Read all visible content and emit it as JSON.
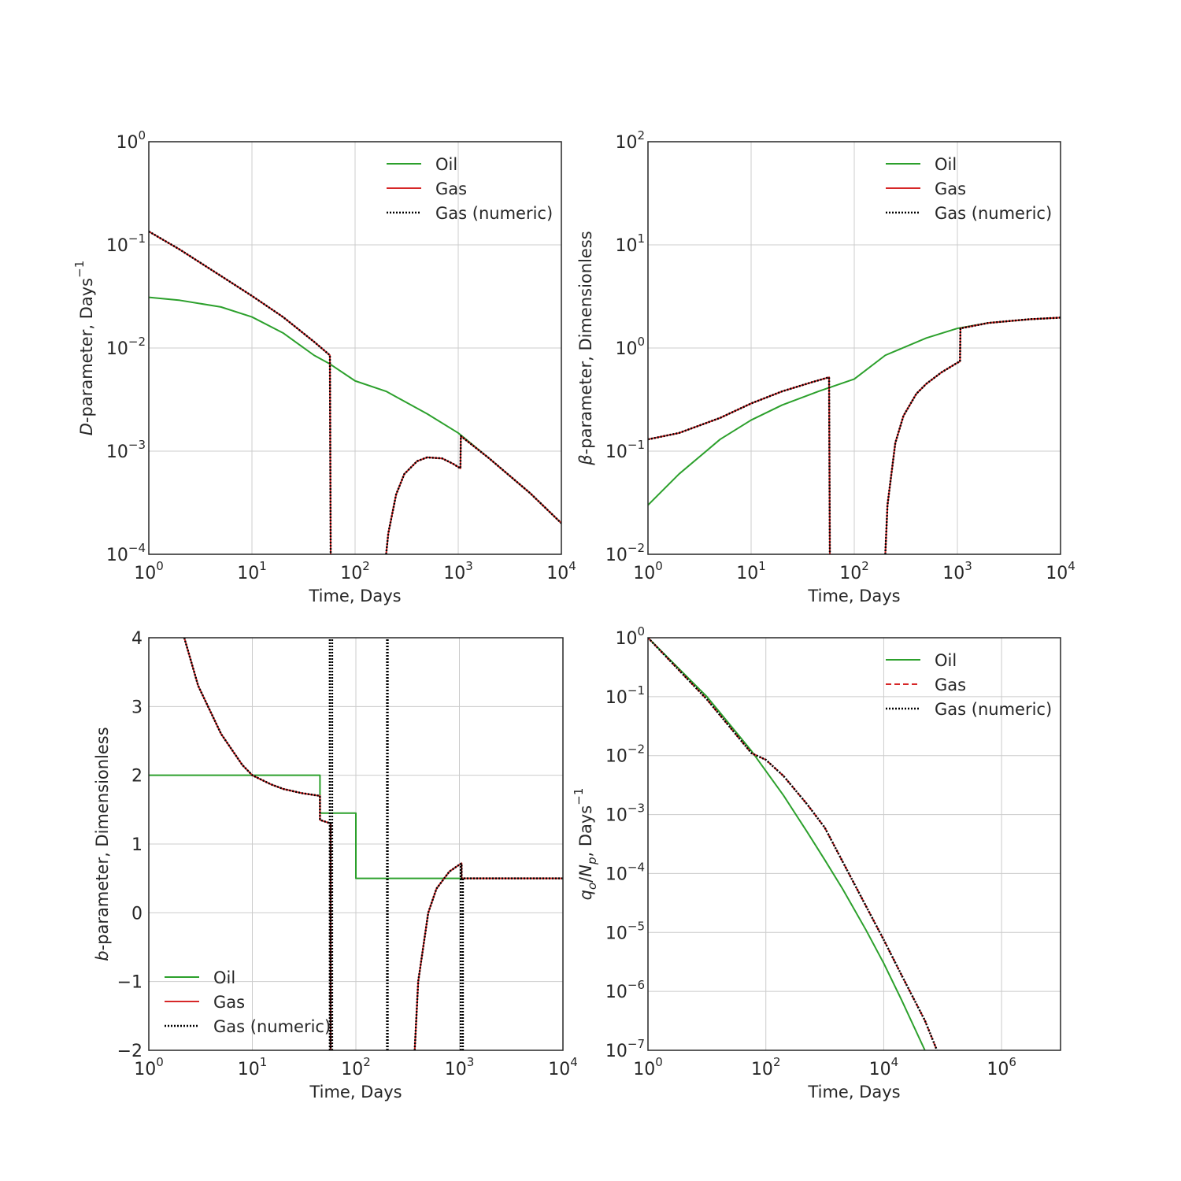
{
  "colors": {
    "oil": "#2ca02c",
    "gas": "#d62728",
    "numeric": "#000000",
    "grid": "#cccccc",
    "frame": "#262626"
  },
  "chart_data": [
    {
      "id": "d",
      "type": "line",
      "xlabel": "Time, Days",
      "ylabel_italic": "D",
      "ylabel_rest": "-parameter, Days",
      "ylabel_sup": "−1",
      "xscale": "log",
      "yscale": "log",
      "xlim": [
        1,
        10000
      ],
      "ylim": [
        0.0001,
        1
      ],
      "grid": true,
      "legend": "top-right",
      "xticks": [
        {
          "b": "10",
          "e": "0"
        },
        {
          "b": "10",
          "e": "1"
        },
        {
          "b": "10",
          "e": "2"
        },
        {
          "b": "10",
          "e": "3"
        },
        {
          "b": "10",
          "e": "4"
        }
      ],
      "yticks": [
        {
          "b": "10",
          "e": "−4"
        },
        {
          "b": "10",
          "e": "−3"
        },
        {
          "b": "10",
          "e": "−2"
        },
        {
          "b": "10",
          "e": "−1"
        },
        {
          "b": "10",
          "e": "0"
        }
      ],
      "series": [
        {
          "name": "Oil",
          "style": "solid",
          "color": "oil",
          "x": [
            1,
            2,
            5,
            10,
            20,
            40,
            57,
            100,
            200,
            500,
            1000,
            2000,
            5000,
            10000
          ],
          "y": [
            0.031,
            0.029,
            0.025,
            0.02,
            0.014,
            0.0085,
            0.007,
            0.0048,
            0.0038,
            0.0023,
            0.0015,
            0.00085,
            0.00039,
            0.0002
          ]
        },
        {
          "name": "Gas",
          "style": "solid",
          "color": "gas",
          "x": [
            1,
            2,
            5,
            10,
            20,
            40,
            57,
            58,
            null,
            200,
            210,
            250,
            300,
            400,
            500,
            700,
            900,
            1050,
            1060,
            2000,
            5000,
            10000
          ],
          "y": [
            0.135,
            0.09,
            0.05,
            0.032,
            0.02,
            0.0115,
            0.0085,
            0.0001,
            null,
            0.0001,
            0.00016,
            0.00038,
            0.0006,
            0.0008,
            0.00087,
            0.00085,
            0.00075,
            0.00068,
            0.0014,
            0.00085,
            0.00039,
            0.0002
          ]
        },
        {
          "name": "Gas (numeric)",
          "style": "dotted",
          "color": "numeric",
          "x": [
            1,
            2,
            5,
            10,
            20,
            40,
            57,
            58,
            null,
            200,
            210,
            250,
            300,
            400,
            500,
            700,
            900,
            1050,
            1060,
            2000,
            5000,
            10000
          ],
          "y": [
            0.135,
            0.09,
            0.05,
            0.032,
            0.02,
            0.0115,
            0.0085,
            0.0001,
            null,
            0.0001,
            0.00016,
            0.00038,
            0.0006,
            0.0008,
            0.00087,
            0.00085,
            0.00075,
            0.00068,
            0.0014,
            0.00085,
            0.00039,
            0.0002
          ]
        }
      ]
    },
    {
      "id": "beta",
      "type": "line",
      "xlabel": "Time, Days",
      "ylabel_italic": "β",
      "ylabel_rest": "-parameter, Dimensionless",
      "ylabel_sup": "",
      "xscale": "log",
      "yscale": "log",
      "xlim": [
        1,
        10000
      ],
      "ylim": [
        0.01,
        100
      ],
      "grid": true,
      "legend": "top-right",
      "xticks": [
        {
          "b": "10",
          "e": "0"
        },
        {
          "b": "10",
          "e": "1"
        },
        {
          "b": "10",
          "e": "2"
        },
        {
          "b": "10",
          "e": "3"
        },
        {
          "b": "10",
          "e": "4"
        }
      ],
      "yticks": [
        {
          "b": "10",
          "e": "−2"
        },
        {
          "b": "10",
          "e": "−1"
        },
        {
          "b": "10",
          "e": "0"
        },
        {
          "b": "10",
          "e": "1"
        },
        {
          "b": "10",
          "e": "2"
        }
      ],
      "series": [
        {
          "name": "Oil",
          "style": "solid",
          "color": "oil",
          "x": [
            1,
            2,
            5,
            10,
            20,
            45,
            100,
            200,
            500,
            1000,
            2000,
            5000,
            10000
          ],
          "y": [
            0.03,
            0.06,
            0.13,
            0.2,
            0.28,
            0.38,
            0.5,
            0.85,
            1.25,
            1.55,
            1.75,
            1.9,
            1.97
          ]
        },
        {
          "name": "Gas",
          "style": "solid",
          "color": "gas",
          "x": [
            1,
            2,
            5,
            10,
            20,
            40,
            57,
            58,
            null,
            200,
            210,
            250,
            300,
            400,
            500,
            700,
            1000,
            1060,
            1070,
            2000,
            5000,
            10000
          ],
          "y": [
            0.13,
            0.15,
            0.21,
            0.29,
            0.38,
            0.47,
            0.52,
            0.01,
            null,
            0.01,
            0.03,
            0.12,
            0.22,
            0.36,
            0.45,
            0.58,
            0.72,
            0.74,
            1.55,
            1.75,
            1.9,
            1.97
          ]
        },
        {
          "name": "Gas (numeric)",
          "style": "dotted",
          "color": "numeric",
          "x": [
            1,
            2,
            5,
            10,
            20,
            40,
            57,
            58,
            null,
            200,
            210,
            250,
            300,
            400,
            500,
            700,
            1000,
            1060,
            1070,
            2000,
            5000,
            10000
          ],
          "y": [
            0.13,
            0.15,
            0.21,
            0.29,
            0.38,
            0.47,
            0.52,
            0.01,
            null,
            0.01,
            0.03,
            0.12,
            0.22,
            0.36,
            0.45,
            0.58,
            0.72,
            0.74,
            1.55,
            1.75,
            1.9,
            1.97
          ]
        }
      ]
    },
    {
      "id": "b",
      "type": "line",
      "xlabel": "Time, Days",
      "ylabel_italic": "b",
      "ylabel_rest": "-parameter, Dimensionless",
      "ylabel_sup": "",
      "xscale": "log",
      "yscale": "linear",
      "xlim": [
        1,
        10000
      ],
      "ylim": [
        -2,
        4
      ],
      "grid": true,
      "legend": "bottom-left",
      "xticks": [
        {
          "b": "10",
          "e": "0"
        },
        {
          "b": "10",
          "e": "1"
        },
        {
          "b": "10",
          "e": "2"
        },
        {
          "b": "10",
          "e": "3"
        },
        {
          "b": "10",
          "e": "4"
        }
      ],
      "yticks": [
        {
          "b": "−2",
          "e": ""
        },
        {
          "b": "−1",
          "e": ""
        },
        {
          "b": "0",
          "e": ""
        },
        {
          "b": "1",
          "e": ""
        },
        {
          "b": "2",
          "e": ""
        },
        {
          "b": "3",
          "e": ""
        },
        {
          "b": "4",
          "e": ""
        }
      ],
      "series": [
        {
          "name": "Oil",
          "style": "solid",
          "color": "oil",
          "x": [
            1,
            45,
            45,
            100,
            100,
            10000
          ],
          "y": [
            2,
            2,
            1.45,
            1.45,
            0.5,
            0.5
          ]
        },
        {
          "name": "Gas",
          "style": "solid",
          "color": "gas",
          "x": [
            2.2,
            3,
            5,
            8,
            10,
            15,
            20,
            30,
            45,
            45,
            57,
            57,
            null,
            370,
            400,
            500,
            600,
            800,
            1000,
            1050,
            1050,
            10000
          ],
          "y": [
            4,
            3.3,
            2.6,
            2.15,
            2.0,
            1.87,
            1.8,
            1.74,
            1.7,
            1.35,
            1.3,
            -2,
            null,
            -2,
            -1.0,
            0.0,
            0.35,
            0.6,
            0.7,
            0.72,
            0.5,
            0.5
          ]
        },
        {
          "name": "Gas (numeric)",
          "style": "dotted",
          "color": "numeric",
          "x": [
            2.2,
            3,
            5,
            8,
            10,
            15,
            20,
            30,
            45,
            45,
            57,
            57,
            null,
            56,
            56,
            null,
            59,
            59,
            null,
            200,
            200,
            null,
            203,
            203,
            null,
            1030,
            1030,
            null,
            1080,
            1080,
            null,
            370,
            400,
            500,
            600,
            800,
            1000,
            1050,
            1050,
            10000
          ],
          "y": [
            4,
            3.3,
            2.6,
            2.15,
            2.0,
            1.87,
            1.8,
            1.74,
            1.7,
            1.35,
            1.3,
            -2,
            null,
            -2,
            4,
            null,
            -2,
            4,
            null,
            -2,
            4,
            null,
            -2,
            4,
            null,
            -2,
            0.72,
            null,
            -2,
            0.5,
            null,
            -2,
            -1.0,
            0.0,
            0.35,
            0.6,
            0.7,
            0.72,
            0.5,
            0.5
          ]
        }
      ]
    },
    {
      "id": "q",
      "type": "line",
      "xlabel": "Time, Days",
      "ylabel_italic": "q",
      "ylabel_rest": "",
      "ylabel_sup": "−1",
      "xscale": "log",
      "yscale": "log",
      "xlim": [
        1,
        10000000
      ],
      "ylim": [
        1e-07,
        1
      ],
      "grid": true,
      "legend": "top-right",
      "xticks": [
        {
          "b": "10",
          "e": "0"
        },
        {
          "b": "10",
          "e": "2"
        },
        {
          "b": "10",
          "e": "4"
        },
        {
          "b": "10",
          "e": "6"
        }
      ],
      "yticks": [
        {
          "b": "10",
          "e": "−7"
        },
        {
          "b": "10",
          "e": "−6"
        },
        {
          "b": "10",
          "e": "−5"
        },
        {
          "b": "10",
          "e": "−4"
        },
        {
          "b": "10",
          "e": "−3"
        },
        {
          "b": "10",
          "e": "−2"
        },
        {
          "b": "10",
          "e": "−1"
        },
        {
          "b": "10",
          "e": "0"
        }
      ],
      "series": [
        {
          "name": "Oil",
          "style": "solid",
          "color": "oil",
          "x": [
            1,
            10,
            57,
            100,
            200,
            500,
            1000,
            2000,
            5000,
            10000,
            20000,
            50000
          ],
          "y": [
            1,
            0.1,
            0.012,
            0.0055,
            0.0021,
            0.00051,
            0.00017,
            5.5e-05,
            1.1e-05,
            3e-06,
            7.2e-07,
            1e-07
          ]
        },
        {
          "name": "Gas",
          "style": "dashed",
          "color": "gas",
          "x": [
            1,
            10,
            57,
            100,
            200,
            500,
            1000,
            2000,
            5000,
            10000,
            20000,
            50000,
            80000
          ],
          "y": [
            1,
            0.09,
            0.011,
            0.0085,
            0.0045,
            0.0015,
            0.0006,
            0.00016,
            2.8e-05,
            7.5e-06,
            1.9e-06,
            3.2e-07,
            1e-07
          ]
        },
        {
          "name": "Gas (numeric)",
          "style": "dotted",
          "color": "numeric",
          "x": [
            1,
            10,
            57,
            100,
            200,
            500,
            1000,
            2000,
            5000,
            10000,
            20000,
            50000,
            80000
          ],
          "y": [
            1,
            0.09,
            0.011,
            0.0085,
            0.0045,
            0.0015,
            0.0006,
            0.00016,
            2.8e-05,
            7.5e-06,
            1.9e-06,
            3.2e-07,
            1e-07
          ]
        }
      ]
    }
  ]
}
